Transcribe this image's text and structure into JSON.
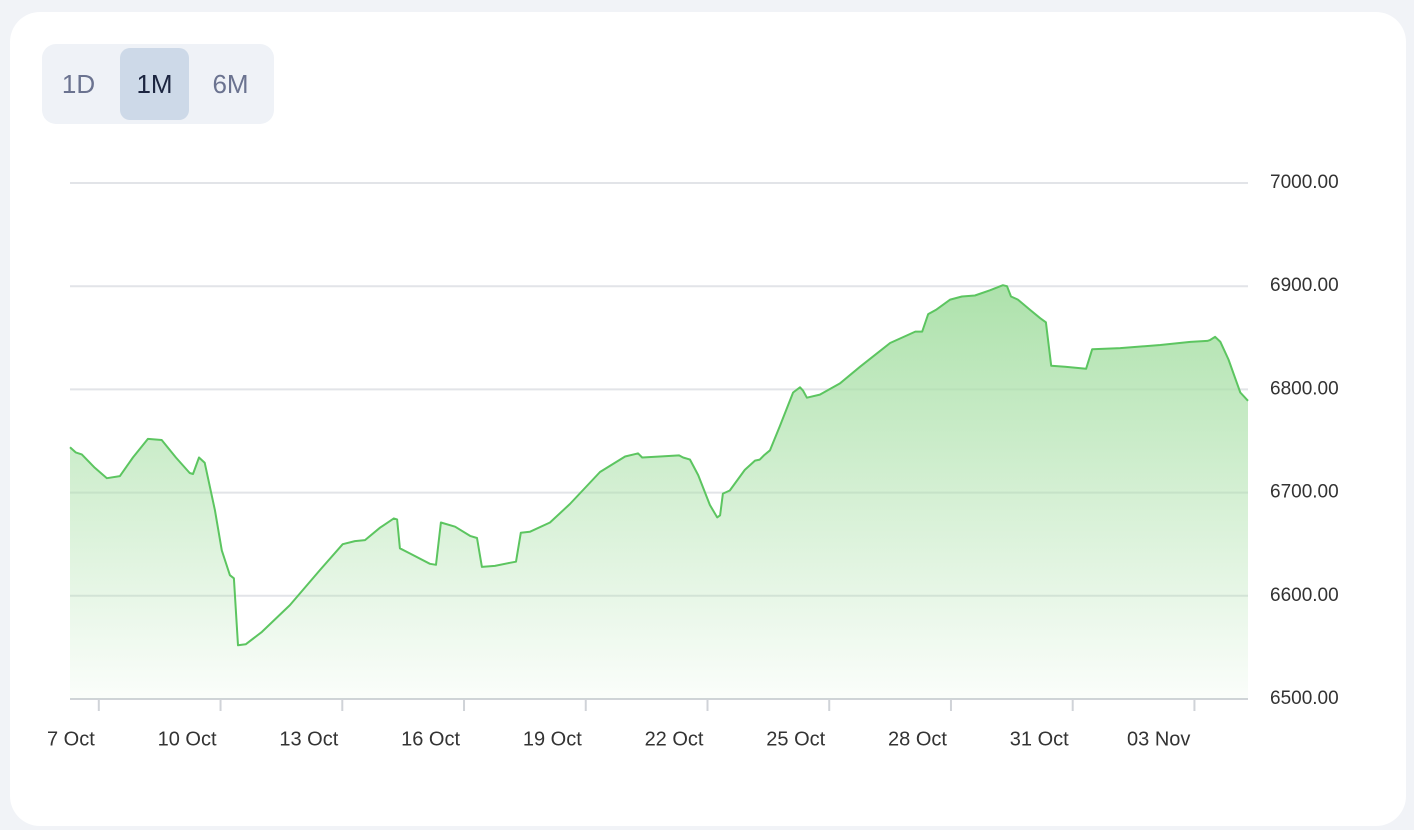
{
  "range_buttons": {
    "options": [
      "1D",
      "1M",
      "6M"
    ],
    "selected": 1
  },
  "chart_data": {
    "type": "area",
    "color": "#5cc560",
    "grid": true,
    "x": [
      -0.71,
      -0.57,
      -0.42,
      -0.1,
      0.2,
      0.52,
      0.84,
      1.21,
      1.55,
      1.9,
      2.24,
      2.32,
      2.47,
      2.61,
      2.86,
      3.03,
      3.23,
      3.33,
      3.43,
      3.62,
      4.02,
      4.71,
      5.45,
      6.01,
      6.31,
      6.56,
      6.93,
      7.27,
      7.35,
      7.42,
      7.67,
      8.16,
      8.31,
      8.43,
      8.78,
      9.15,
      9.32,
      9.44,
      9.76,
      10.13,
      10.28,
      10.4,
      10.62,
      11.12,
      11.61,
      12.35,
      12.97,
      13.29,
      13.39,
      13.83,
      14.3,
      14.4,
      14.57,
      14.77,
      15.06,
      15.24,
      15.31,
      15.38,
      15.55,
      15.92,
      16.17,
      16.29,
      16.39,
      16.54,
      16.79,
      17.11,
      17.28,
      17.35,
      17.45,
      17.77,
      18.27,
      18.76,
      19.5,
      20.12,
      20.29,
      20.44,
      20.63,
      20.98,
      21.27,
      21.59,
      21.96,
      22.28,
      22.38,
      22.48,
      22.65,
      22.95,
      23.2,
      23.34,
      23.47,
      23.81,
      24.33,
      24.48,
      25.17,
      26.16,
      26.9,
      27.32,
      27.39,
      27.51,
      27.64,
      27.84,
      28.13,
      28.32
    ],
    "values": [
      6744,
      6739,
      6737,
      6724,
      6714,
      6716,
      6734,
      6752,
      6751,
      6734,
      6719,
      6718,
      6734,
      6729,
      6683,
      6644,
      6620,
      6617,
      6552,
      6553,
      6565,
      6591,
      6625,
      6650,
      6653,
      6654,
      6666,
      6675,
      6674,
      6646,
      6641,
      6631,
      6630,
      6671,
      6667,
      6658,
      6656,
      6628,
      6629,
      6632,
      6633,
      6661,
      6662,
      6671,
      6689,
      6720,
      6735,
      6738,
      6734,
      6735,
      6736,
      6734,
      6732,
      6717,
      6688,
      6676,
      6678,
      6699,
      6702,
      6722,
      6731,
      6732,
      6736,
      6741,
      6765,
      6797,
      6802,
      6799,
      6792,
      6795,
      6806,
      6822,
      6845,
      6856,
      6856,
      6873,
      6877,
      6887,
      6890,
      6891,
      6896,
      6901,
      6900,
      6890,
      6887,
      6877,
      6869,
      6865,
      6823,
      6822,
      6820,
      6839,
      6840,
      6843,
      6846,
      6847,
      6848,
      6851,
      6846,
      6829,
      6797,
      6789
    ],
    "xlim": [
      -0.71,
      28.32
    ],
    "xticks": [
      {
        "value": 0,
        "label": "7 Oct"
      },
      {
        "value": 3,
        "label": "10 Oct"
      },
      {
        "value": 6,
        "label": "13 Oct"
      },
      {
        "value": 9,
        "label": "16 Oct"
      },
      {
        "value": 12,
        "label": "19 Oct"
      },
      {
        "value": 15,
        "label": "22 Oct"
      },
      {
        "value": 18,
        "label": "25 Oct"
      },
      {
        "value": 21,
        "label": "28 Oct"
      },
      {
        "value": 24,
        "label": "31 Oct"
      },
      {
        "value": 27,
        "label": "03 Nov"
      }
    ],
    "ylim": [
      6500,
      7000
    ],
    "yticks": [
      {
        "value": 6500,
        "label": "6500.00"
      },
      {
        "value": 6600,
        "label": "6600.00"
      },
      {
        "value": 6700,
        "label": "6700.00"
      },
      {
        "value": 6800,
        "label": "6800.00"
      },
      {
        "value": 6900,
        "label": "6900.00"
      },
      {
        "value": 7000,
        "label": "7000.00"
      }
    ]
  }
}
